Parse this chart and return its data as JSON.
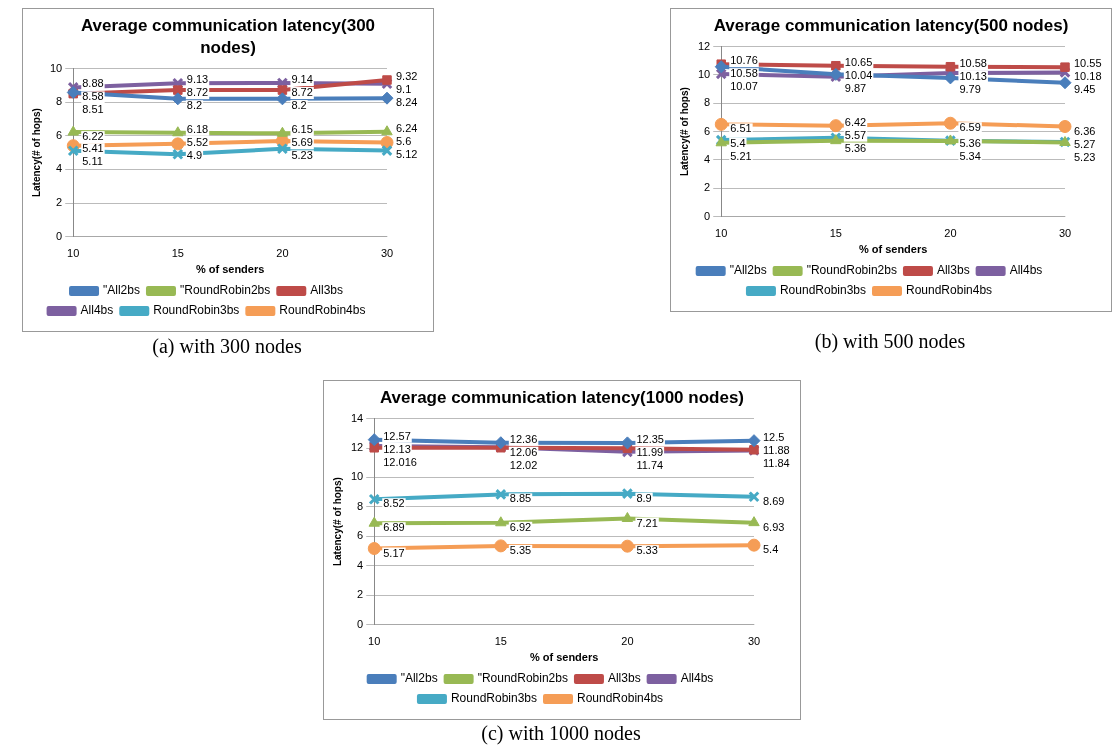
{
  "chart_data": [
    {
      "type": "line",
      "title": "Average communication latency(300 nodes)",
      "xlabel": "% of senders",
      "ylabel": "Latency(# of hops)",
      "categories": [
        "10",
        "15",
        "20",
        "30"
      ],
      "ylim": [
        0,
        10
      ],
      "yticks": [
        0,
        2,
        4,
        6,
        8,
        10
      ],
      "grid": "y",
      "legend": "bottom",
      "data_labels": true,
      "annotations": [
        "(a)  with 300 nodes"
      ],
      "series": [
        {
          "name": "\"All2bs",
          "color": "#4a7ebb",
          "marker": "diamond",
          "values": [
            8.58,
            8.2,
            8.2,
            8.24
          ]
        },
        {
          "name": "\"RoundRobin2bs",
          "color": "#98b954",
          "marker": "triangle",
          "values": [
            6.22,
            6.18,
            6.15,
            6.24
          ]
        },
        {
          "name": "All3bs",
          "color": "#be4b48",
          "marker": "square",
          "values": [
            8.51,
            8.72,
            8.72,
            9.32
          ]
        },
        {
          "name": "All4bs",
          "color": "#7d60a0",
          "marker": "cross",
          "values": [
            8.88,
            9.13,
            9.14,
            9.1
          ]
        },
        {
          "name": "RoundRobin3bs",
          "color": "#46aac5",
          "marker": "cross",
          "values": [
            5.11,
            4.9,
            5.23,
            5.12
          ]
        },
        {
          "name": "RoundRobin4bs",
          "color": "#f59d56",
          "marker": "circle",
          "values": [
            5.41,
            5.52,
            5.69,
            5.6
          ]
        }
      ]
    },
    {
      "type": "line",
      "title": "Average communication latency(500 nodes)",
      "xlabel": "% of senders",
      "ylabel": "Latency(# of hops)",
      "categories": [
        "10",
        "15",
        "20",
        "30"
      ],
      "ylim": [
        0,
        12
      ],
      "yticks": [
        0,
        2,
        4,
        6,
        8,
        10,
        12
      ],
      "grid": "y",
      "legend": "bottom",
      "data_labels": true,
      "annotations": [
        "(b)  with 500 nodes"
      ],
      "series": [
        {
          "name": "\"All2bs",
          "color": "#4a7ebb",
          "marker": "diamond",
          "values": [
            10.58,
            10.04,
            9.79,
            9.45
          ]
        },
        {
          "name": "\"RoundRobin2bs",
          "color": "#98b954",
          "marker": "triangle",
          "values": [
            5.21,
            5.36,
            5.34,
            5.23
          ]
        },
        {
          "name": "All3bs",
          "color": "#be4b48",
          "marker": "square",
          "values": [
            10.76,
            10.65,
            10.58,
            10.55
          ]
        },
        {
          "name": "All4bs",
          "color": "#7d60a0",
          "marker": "cross",
          "values": [
            10.07,
            9.87,
            10.13,
            10.18
          ]
        },
        {
          "name": "RoundRobin3bs",
          "color": "#46aac5",
          "marker": "cross",
          "values": [
            5.4,
            5.57,
            5.36,
            5.27
          ]
        },
        {
          "name": "RoundRobin4bs",
          "color": "#f59d56",
          "marker": "circle",
          "values": [
            6.51,
            6.42,
            6.59,
            6.36
          ]
        }
      ]
    },
    {
      "type": "line",
      "title": "Average communication latency(1000 nodes)",
      "xlabel": "% of senders",
      "ylabel": "Latency(# of hops)",
      "categories": [
        "10",
        "15",
        "20",
        "30"
      ],
      "ylim": [
        0,
        14
      ],
      "yticks": [
        0,
        2,
        4,
        6,
        8,
        10,
        12,
        14
      ],
      "grid": "y",
      "legend": "bottom",
      "data_labels": true,
      "annotations": [
        "(c)  with 1000 nodes"
      ],
      "series": [
        {
          "name": "\"All2bs",
          "color": "#4a7ebb",
          "marker": "diamond",
          "values": [
            12.57,
            12.36,
            12.35,
            12.5
          ]
        },
        {
          "name": "\"RoundRobin2bs",
          "color": "#98b954",
          "marker": "triangle",
          "values": [
            6.89,
            6.92,
            7.21,
            6.93
          ]
        },
        {
          "name": "All3bs",
          "color": "#be4b48",
          "marker": "square",
          "values": [
            12.016,
            12.02,
            11.99,
            11.88
          ]
        },
        {
          "name": "All4bs",
          "color": "#7d60a0",
          "marker": "cross",
          "values": [
            12.13,
            12.06,
            11.74,
            11.84
          ]
        },
        {
          "name": "RoundRobin3bs",
          "color": "#46aac5",
          "marker": "cross",
          "values": [
            8.52,
            8.85,
            8.9,
            8.69
          ]
        },
        {
          "name": "RoundRobin4bs",
          "color": "#f59d56",
          "marker": "circle",
          "values": [
            5.17,
            5.35,
            5.33,
            5.4
          ]
        }
      ]
    }
  ]
}
